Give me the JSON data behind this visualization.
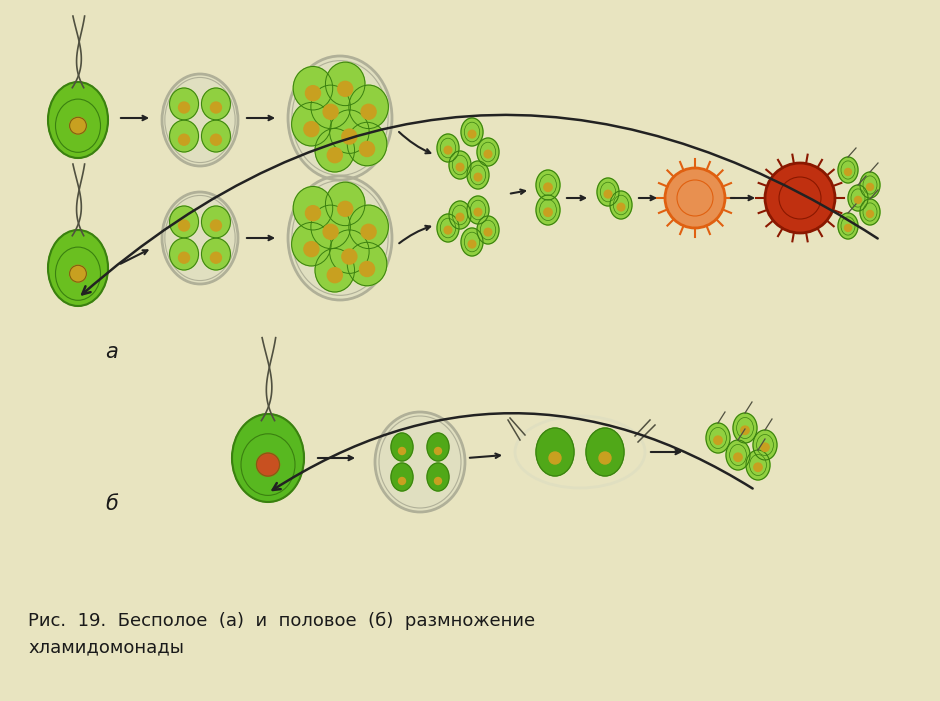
{
  "bg_color": "#e8e4c0",
  "title_line1": "Рис.  19.  Бесполое  (а)  и  половое  (б)  размножение",
  "title_line2": "хламидомонады",
  "label_a": "а",
  "label_b": "б",
  "title_fontsize": 13,
  "label_fontsize": 15,
  "green_body": "#6abf20",
  "green_dark": "#3a8010",
  "green_mid": "#50a818",
  "green_light": "#90d040",
  "nucleus_color": "#c8a020",
  "nucleus_b_color": "#c85020",
  "orange_zygote": "#e06010",
  "orange_light": "#e89050",
  "red_zygote": "#c03010",
  "shell_color": "#b0b098",
  "shell_fill": "#e0dfc0",
  "arrow_color": "#222222",
  "flagella_color": "#505040"
}
